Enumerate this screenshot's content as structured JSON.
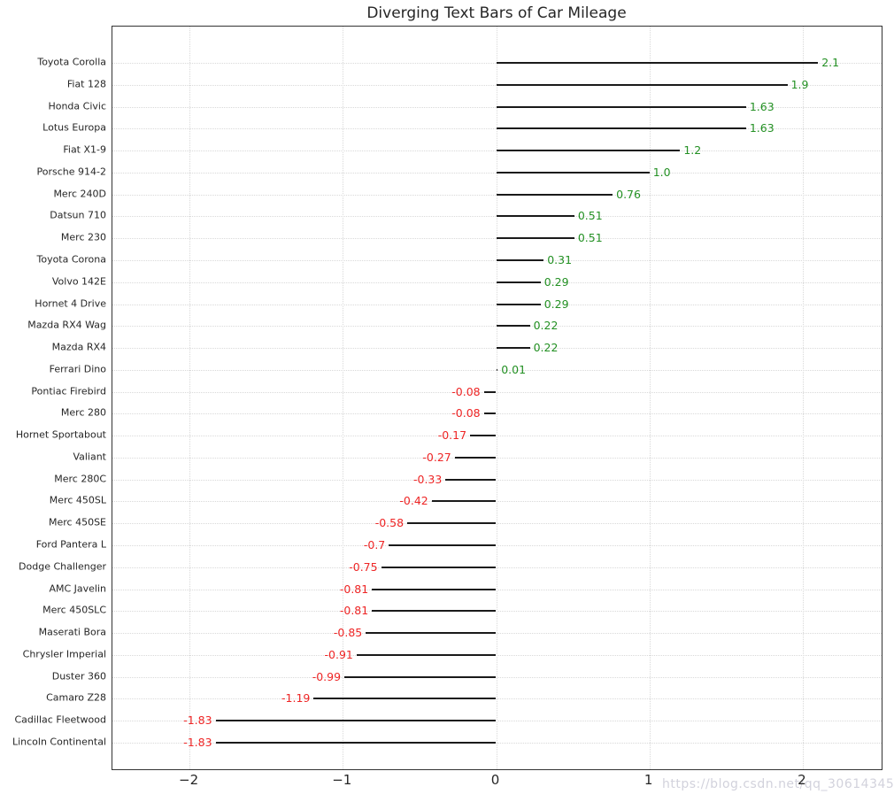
{
  "page": {
    "watermark": "https://blog.csdn.net/qq_30614345"
  },
  "chart_data": {
    "type": "bar",
    "orientation": "horizontal-diverging",
    "title": "Diverging Text Bars of Car Mileage",
    "xlabel": "",
    "ylabel": "",
    "xlim": [
      -2.5,
      2.53
    ],
    "grid": "dotted-both-axes",
    "legend": "none",
    "categories": [
      "Toyota Corolla",
      "Fiat 128",
      "Honda Civic",
      "Lotus Europa",
      "Fiat X1-9",
      "Porsche 914-2",
      "Merc 240D",
      "Datsun 710",
      "Merc 230",
      "Toyota Corona",
      "Volvo 142E",
      "Hornet 4 Drive",
      "Mazda RX4 Wag",
      "Mazda RX4",
      "Ferrari Dino",
      "Pontiac Firebird",
      "Merc 280",
      "Hornet Sportabout",
      "Valiant",
      "Merc 280C",
      "Merc 450SL",
      "Merc 450SE",
      "Ford Pantera L",
      "Dodge Challenger",
      "AMC Javelin",
      "Merc 450SLC",
      "Maserati Bora",
      "Chrysler Imperial",
      "Duster 360",
      "Camaro Z28",
      "Cadillac Fleetwood",
      "Lincoln Continental"
    ],
    "values": [
      2.1,
      1.9,
      1.63,
      1.63,
      1.2,
      1.0,
      0.76,
      0.51,
      0.51,
      0.31,
      0.29,
      0.29,
      0.22,
      0.22,
      0.01,
      -0.08,
      -0.08,
      -0.17,
      -0.27,
      -0.33,
      -0.42,
      -0.58,
      -0.7,
      -0.75,
      -0.81,
      -0.81,
      -0.85,
      -0.91,
      -0.99,
      -1.19,
      -1.83,
      -1.83
    ],
    "value_labels": [
      "2.1",
      "1.9",
      "1.63",
      "1.63",
      "1.2",
      "1.0",
      "0.76",
      "0.51",
      "0.51",
      "0.31",
      "0.29",
      "0.29",
      "0.22",
      "0.22",
      "0.01",
      "-0.08",
      "-0.08",
      "-0.17",
      "-0.27",
      "-0.33",
      "-0.42",
      "-0.58",
      "-0.7",
      "-0.75",
      "-0.81",
      "-0.81",
      "-0.85",
      "-0.91",
      "-0.99",
      "-1.19",
      "-1.83",
      "-1.83"
    ],
    "x_tick_values": [
      -2,
      -1,
      0,
      1,
      2
    ],
    "x_tick_labels": [
      "−2",
      "−1",
      "0",
      "1",
      "2"
    ],
    "colors": {
      "positive_text": "#239023",
      "negative_text": "#ee2525",
      "bar": "#1a1a1a",
      "grid": "#d9d9d9",
      "spine": "#333333",
      "tick_text": "#262626",
      "title_text": "#262626",
      "watermark_text": "#d2d2dc"
    }
  }
}
